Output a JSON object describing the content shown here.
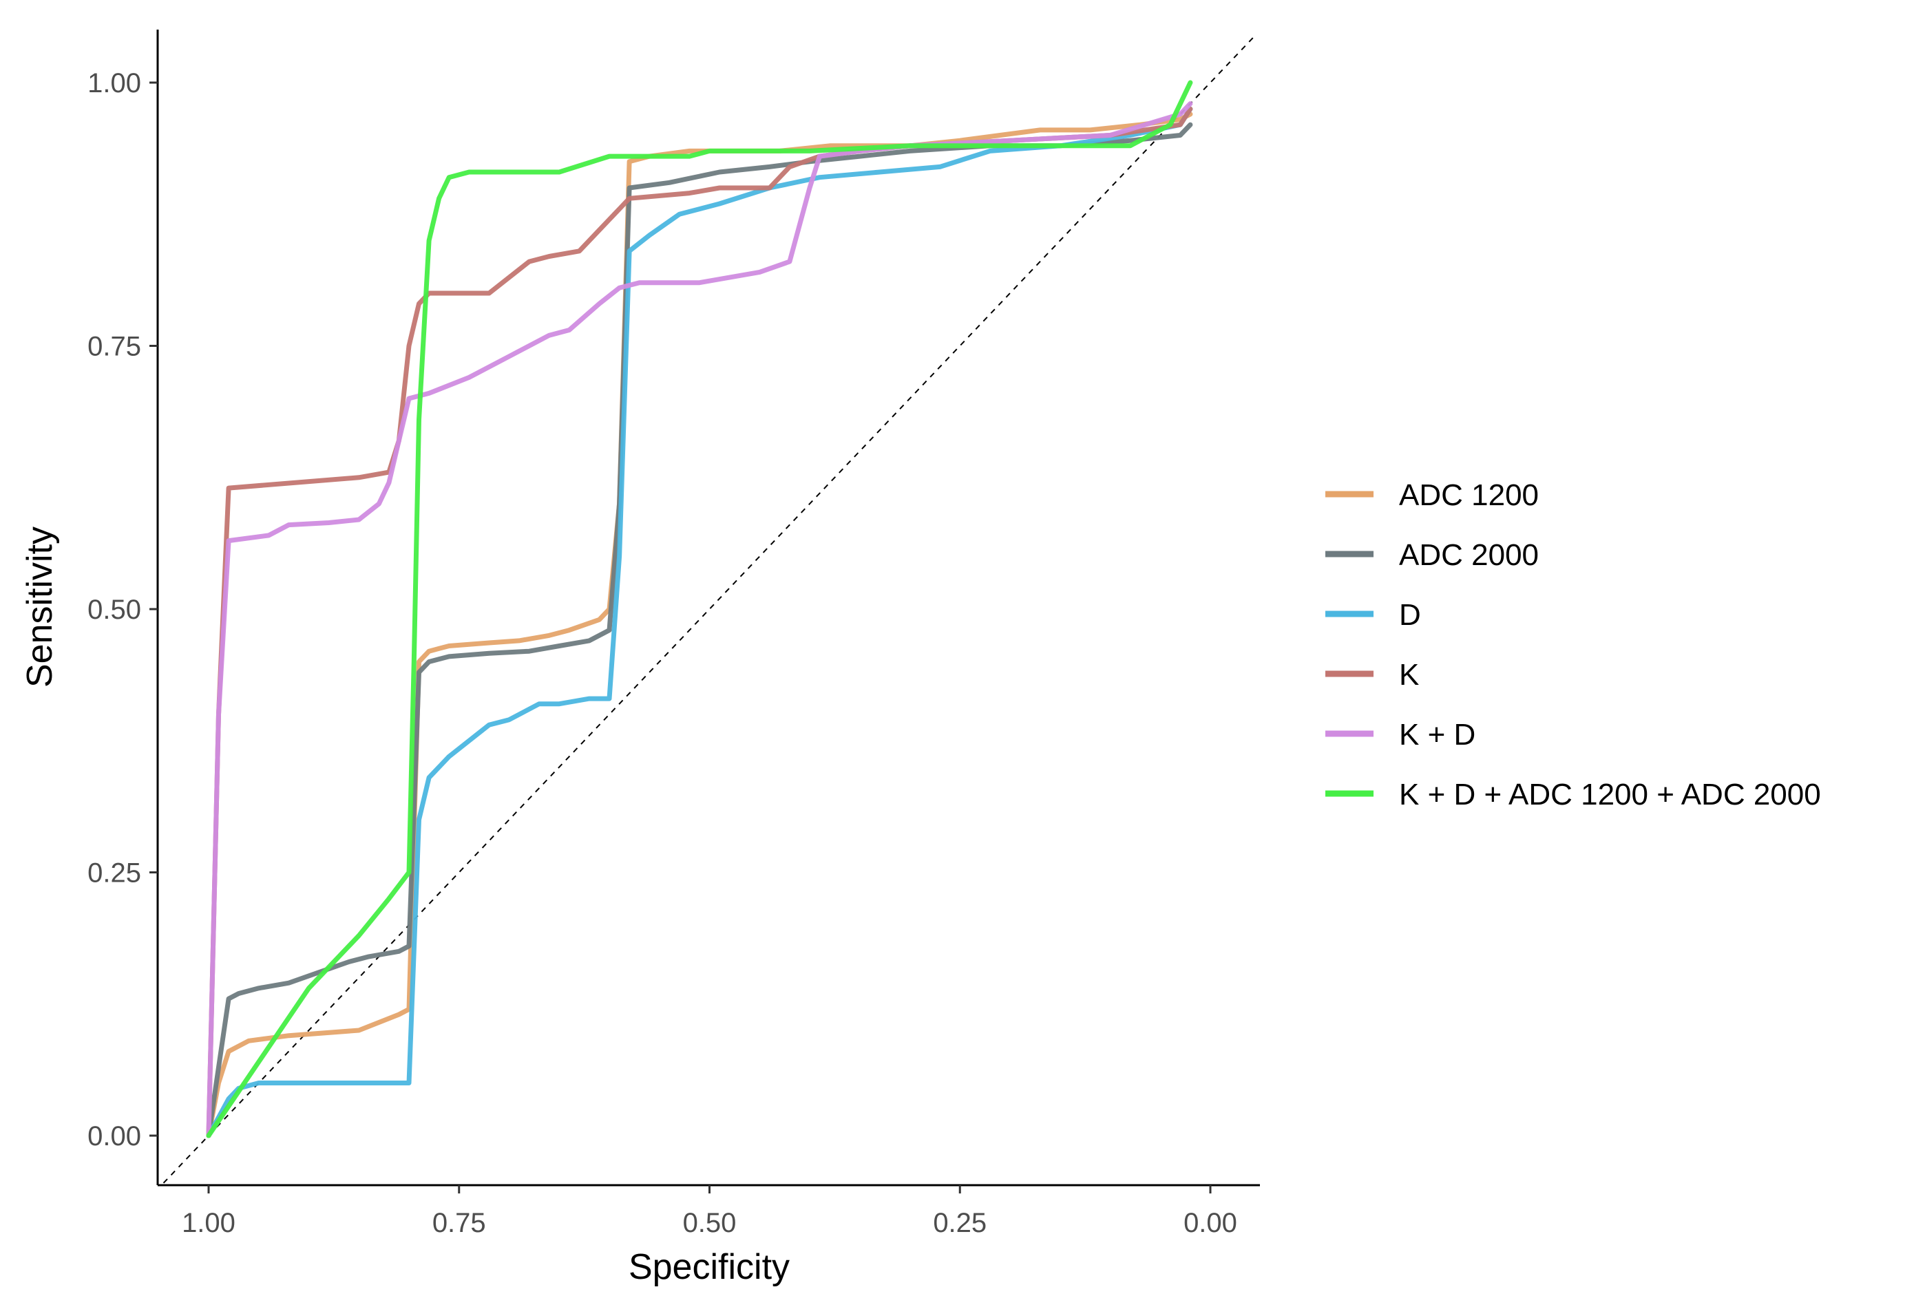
{
  "chart_data": {
    "type": "line",
    "title": "",
    "xlabel": "Specificity",
    "ylabel": "Sensitivity",
    "xlim": [
      1.0,
      0.0
    ],
    "ylim": [
      0.0,
      1.0
    ],
    "x_reversed": true,
    "x_ticks": [
      1.0,
      0.75,
      0.5,
      0.25,
      0.0
    ],
    "x_tick_labels": [
      "1.00",
      "0.75",
      "0.50",
      "0.25",
      "0.00"
    ],
    "y_ticks": [
      0.0,
      0.25,
      0.5,
      0.75,
      1.0
    ],
    "y_tick_labels": [
      "0.00",
      "0.25",
      "0.50",
      "0.75",
      "1.00"
    ],
    "grid": false,
    "legend_position": "right",
    "reference_line": {
      "style": "dashed",
      "color": "#000000",
      "from": [
        1.0,
        0.0
      ],
      "to": [
        0.0,
        1.0
      ]
    },
    "series": [
      {
        "name": "ADC 1200",
        "color": "#E5A46A",
        "specificity": [
          1.0,
          0.99,
          0.98,
          0.96,
          0.92,
          0.85,
          0.81,
          0.8,
          0.79,
          0.78,
          0.76,
          0.72,
          0.69,
          0.66,
          0.64,
          0.61,
          0.6,
          0.59,
          0.58,
          0.56,
          0.52,
          0.47,
          0.43,
          0.38,
          0.35,
          0.3,
          0.25,
          0.21,
          0.17,
          0.12,
          0.07,
          0.03,
          0.02
        ],
        "sensitivity": [
          0.0,
          0.05,
          0.08,
          0.09,
          0.095,
          0.1,
          0.115,
          0.12,
          0.45,
          0.46,
          0.465,
          0.468,
          0.47,
          0.475,
          0.48,
          0.49,
          0.5,
          0.6,
          0.925,
          0.93,
          0.935,
          0.935,
          0.935,
          0.94,
          0.94,
          0.94,
          0.945,
          0.95,
          0.955,
          0.955,
          0.96,
          0.965,
          0.97
        ]
      },
      {
        "name": "ADC 2000",
        "color": "#6E7B80",
        "specificity": [
          1.0,
          0.98,
          0.97,
          0.95,
          0.92,
          0.89,
          0.86,
          0.84,
          0.81,
          0.8,
          0.79,
          0.78,
          0.76,
          0.72,
          0.68,
          0.65,
          0.62,
          0.6,
          0.59,
          0.58,
          0.54,
          0.49,
          0.44,
          0.4,
          0.35,
          0.3,
          0.22,
          0.15,
          0.08,
          0.03,
          0.02
        ],
        "sensitivity": [
          0.0,
          0.13,
          0.135,
          0.14,
          0.145,
          0.155,
          0.165,
          0.17,
          0.175,
          0.18,
          0.44,
          0.45,
          0.455,
          0.458,
          0.46,
          0.465,
          0.47,
          0.48,
          0.6,
          0.9,
          0.905,
          0.915,
          0.92,
          0.925,
          0.93,
          0.935,
          0.94,
          0.94,
          0.945,
          0.95,
          0.96
        ]
      },
      {
        "name": "D",
        "color": "#4BB6E0",
        "specificity": [
          1.0,
          0.98,
          0.97,
          0.95,
          0.85,
          0.8,
          0.79,
          0.78,
          0.76,
          0.74,
          0.72,
          0.7,
          0.67,
          0.65,
          0.62,
          0.6,
          0.59,
          0.58,
          0.56,
          0.53,
          0.49,
          0.44,
          0.39,
          0.33,
          0.27,
          0.22,
          0.15,
          0.08,
          0.03,
          0.02
        ],
        "sensitivity": [
          0.0,
          0.035,
          0.045,
          0.05,
          0.05,
          0.05,
          0.3,
          0.34,
          0.36,
          0.375,
          0.39,
          0.395,
          0.41,
          0.41,
          0.415,
          0.415,
          0.55,
          0.84,
          0.855,
          0.875,
          0.885,
          0.9,
          0.91,
          0.915,
          0.92,
          0.935,
          0.94,
          0.95,
          0.96,
          0.975
        ]
      },
      {
        "name": "K",
        "color": "#C37671",
        "specificity": [
          1.0,
          0.99,
          0.98,
          0.85,
          0.82,
          0.81,
          0.8,
          0.79,
          0.78,
          0.72,
          0.68,
          0.66,
          0.63,
          0.61,
          0.59,
          0.58,
          0.52,
          0.49,
          0.44,
          0.42,
          0.39,
          0.35,
          0.3,
          0.2,
          0.1,
          0.03,
          0.02
        ],
        "sensitivity": [
          0.0,
          0.4,
          0.615,
          0.625,
          0.63,
          0.66,
          0.75,
          0.79,
          0.8,
          0.8,
          0.83,
          0.835,
          0.84,
          0.86,
          0.88,
          0.89,
          0.895,
          0.9,
          0.9,
          0.92,
          0.93,
          0.935,
          0.94,
          0.945,
          0.95,
          0.96,
          0.975
        ]
      },
      {
        "name": "K + D",
        "color": "#D08CE0",
        "specificity": [
          1.0,
          0.99,
          0.98,
          0.94,
          0.92,
          0.88,
          0.85,
          0.83,
          0.82,
          0.81,
          0.8,
          0.78,
          0.74,
          0.7,
          0.66,
          0.64,
          0.61,
          0.59,
          0.57,
          0.51,
          0.45,
          0.42,
          0.4,
          0.39,
          0.35,
          0.3,
          0.2,
          0.1,
          0.03,
          0.02
        ],
        "sensitivity": [
          0.0,
          0.4,
          0.565,
          0.57,
          0.58,
          0.582,
          0.585,
          0.6,
          0.62,
          0.66,
          0.7,
          0.705,
          0.72,
          0.74,
          0.76,
          0.765,
          0.79,
          0.805,
          0.81,
          0.81,
          0.82,
          0.83,
          0.9,
          0.93,
          0.935,
          0.94,
          0.945,
          0.95,
          0.97,
          0.98
        ]
      },
      {
        "name": "K + D + ADC 1200 + ADC 2000",
        "color": "#45EE45",
        "specificity": [
          1.0,
          0.9,
          0.85,
          0.82,
          0.8,
          0.795,
          0.79,
          0.78,
          0.77,
          0.76,
          0.74,
          0.65,
          0.6,
          0.52,
          0.5,
          0.4,
          0.3,
          0.2,
          0.1,
          0.08,
          0.04,
          0.02
        ],
        "sensitivity": [
          0.0,
          0.14,
          0.19,
          0.225,
          0.25,
          0.45,
          0.68,
          0.85,
          0.89,
          0.91,
          0.915,
          0.915,
          0.93,
          0.93,
          0.935,
          0.935,
          0.94,
          0.94,
          0.94,
          0.94,
          0.96,
          1.0
        ]
      }
    ]
  }
}
